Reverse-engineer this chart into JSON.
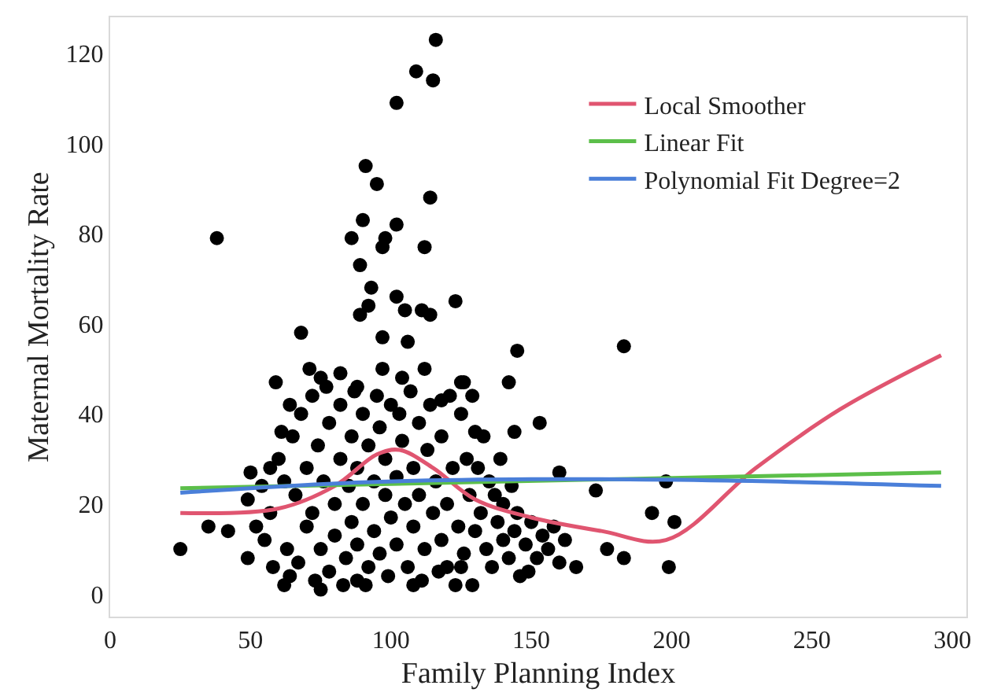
{
  "chart_data": {
    "type": "scatter",
    "xlabel": "Family Planning Index",
    "ylabel": "Maternal Mortality Rate",
    "xlim": [
      0,
      305
    ],
    "ylim": [
      -5,
      128
    ],
    "xticks": [
      0,
      50,
      100,
      150,
      200,
      250,
      300
    ],
    "yticks": [
      0,
      20,
      40,
      60,
      80,
      100,
      120
    ],
    "legend": "top right",
    "marker": "circle",
    "series": [
      {
        "color": "#000000",
        "x": [
          116,
          109,
          115,
          102,
          91,
          95,
          114,
          38,
          90,
          102,
          86,
          98,
          97,
          112,
          89,
          93,
          102,
          92,
          89,
          105,
          111,
          114,
          123,
          68,
          97,
          106,
          145,
          183,
          125,
          129,
          142,
          130,
          144,
          153,
          160,
          173,
          198,
          193,
          201,
          199,
          183,
          177,
          166,
          149,
          129,
          125,
          25,
          35,
          42,
          49,
          49,
          50,
          59,
          71,
          75,
          82,
          88,
          97,
          104,
          112,
          126,
          118,
          108,
          88,
          75,
          62,
          60,
          62,
          65,
          66,
          68,
          70,
          70,
          72,
          72,
          74,
          75,
          76,
          78,
          78,
          80,
          80,
          82,
          82,
          84,
          85,
          86,
          86,
          88,
          88,
          90,
          90,
          92,
          92,
          94,
          94,
          96,
          96,
          98,
          98,
          100,
          100,
          102,
          102,
          104,
          105,
          106,
          108,
          108,
          110,
          110,
          112,
          113,
          115,
          116,
          118,
          118,
          120,
          120,
          122,
          124,
          125,
          126,
          128,
          130,
          132,
          134,
          135,
          136,
          138,
          140,
          140,
          142,
          144,
          145,
          146,
          148,
          150,
          152,
          154,
          156,
          158,
          160,
          162,
          55,
          57,
          58,
          63,
          64,
          67,
          52,
          54,
          57,
          61,
          64,
          73,
          77,
          83,
          87,
          91,
          95,
          99,
          103,
          107,
          111,
          114,
          117,
          121,
          123,
          127,
          131,
          133,
          137,
          139,
          143
        ],
        "values": [
          123,
          116,
          114,
          109,
          95,
          91,
          88,
          79,
          83,
          82,
          79,
          79,
          77,
          77,
          73,
          68,
          66,
          64,
          62,
          63,
          63,
          62,
          65,
          58,
          57,
          56,
          54,
          55,
          47,
          44,
          47,
          36,
          36,
          38,
          27,
          23,
          25,
          18,
          16,
          6,
          8,
          10,
          6,
          5,
          2,
          6,
          10,
          15,
          14,
          8,
          21,
          27,
          47,
          50,
          48,
          49,
          46,
          50,
          48,
          50,
          47,
          43,
          2,
          3,
          1,
          2,
          30,
          25,
          35,
          22,
          40,
          28,
          15,
          18,
          44,
          33,
          10,
          25,
          38,
          5,
          20,
          13,
          30,
          42,
          8,
          24,
          35,
          16,
          28,
          11,
          40,
          20,
          6,
          33,
          25,
          14,
          37,
          9,
          22,
          30,
          17,
          42,
          26,
          11,
          34,
          20,
          6,
          28,
          15,
          38,
          22,
          10,
          32,
          18,
          25,
          12,
          35,
          20,
          6,
          28,
          15,
          40,
          9,
          22,
          14,
          18,
          10,
          25,
          6,
          16,
          12,
          20,
          8,
          14,
          18,
          4,
          11,
          16,
          8,
          13,
          10,
          15,
          7,
          12,
          12,
          18,
          6,
          10,
          4,
          7,
          15,
          24,
          28,
          36,
          42,
          3,
          46,
          2,
          45,
          2,
          44,
          4,
          40,
          45,
          3,
          42,
          5,
          44,
          2,
          30,
          28,
          35,
          22,
          30,
          24
        ]
      },
      {
        "type": "line",
        "name": "Local Smoother",
        "color": "#e05570",
        "marker": "none",
        "x": [
          25,
          60,
          80,
          95,
          103,
          115,
          130,
          150,
          175,
          198,
          230,
          260,
          296
        ],
        "values": [
          18,
          19,
          24,
          31,
          32,
          28,
          21,
          17,
          14,
          12,
          28,
          41,
          53
        ]
      },
      {
        "type": "line",
        "name": "Linear Fit",
        "color": "#5cbf4a",
        "marker": "none",
        "x": [
          25,
          296
        ],
        "values": [
          23.5,
          27
        ]
      },
      {
        "type": "line",
        "name": "Polynomial Fit Degree=2",
        "color": "#4a7fd9",
        "marker": "none",
        "x": [
          25,
          90,
          150,
          220,
          296
        ],
        "values": [
          22.5,
          24.8,
          25.5,
          25.2,
          24
        ]
      }
    ]
  }
}
